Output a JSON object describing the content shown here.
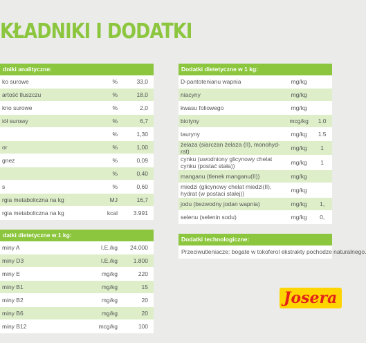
{
  "header": {
    "title": "KŁADNIKI I DODATKI"
  },
  "left_table": {
    "sections": [
      {
        "title": "dniki analityczne:",
        "rows": [
          [
            "ko surowe",
            "%",
            "33,0"
          ],
          [
            "artość tłuszczu",
            "%",
            "18,0"
          ],
          [
            "kno surowe",
            "%",
            "2,0"
          ],
          [
            "iół surowy",
            "%",
            "6,7"
          ],
          [
            "%",
            "1,30"
          ],
          [
            "or",
            "%",
            "1,00"
          ],
          [
            "gnez",
            "%",
            "0,09"
          ],
          [
            "%",
            "0,40"
          ],
          [
            "s",
            "%",
            "0,60"
          ],
          [
            "rgia metaboliczna na kg",
            "MJ",
            "16,7"
          ],
          [
            "rgia metaboliczna na kg",
            "kcal",
            "3.991"
          ]
        ]
      },
      {
        "title": "datki dietetyczne w 1 kg:",
        "rows": [
          [
            "miny A",
            "I.E./kg",
            "24.000"
          ],
          [
            "miny D3",
            "I.E./kg",
            "1.800"
          ],
          [
            "miny E",
            "mg/kg",
            "220"
          ],
          [
            "miny B1",
            "mg/kg",
            "15"
          ],
          [
            "miny B2",
            "mg/kg",
            "20"
          ],
          [
            "miny B6",
            "mg/kg",
            "20"
          ],
          [
            "miny B12",
            "mcg/kg",
            "100"
          ]
        ]
      }
    ]
  },
  "right_table": {
    "sections": [
      {
        "title": "Dodatki dietetyczne w 1 kg:",
        "rows": [
          [
            "D-pantotenianu wapnia",
            "mg/kg"
          ],
          [
            "niacyny",
            "mg/kg"
          ],
          [
            "kwasu foliowego",
            "mg/kg"
          ],
          [
            "biotyny",
            "mcg/kg",
            "1.0"
          ],
          [
            "tauryny",
            "mg/kg",
            "1.5"
          ],
          [
            "żelaza (siarczan żelaza (II), monohyd-rat)",
            "mg/kg",
            "1"
          ],
          [
            "cynku (uwodniony glicynowy chelat cynku (postać stała))",
            "mg/kg",
            "1"
          ],
          [
            "manganu (tlenek manganu(II))",
            "mg/kg"
          ],
          [
            "miedzi (glicynowy chelat miedzi(II), hydrat (w postaci stałej))",
            "mg/kg"
          ],
          [
            "jodu (bezwodny jodan wapnia)",
            "mg/kg",
            "1,"
          ],
          [
            "selenu (selenin sodu)",
            "mg/kg",
            "0,"
          ]
        ]
      },
      {
        "title": "Dodatki technologiczne:",
        "text": "Przeciwutleniacze: bogate w tokoferol ekstrakty pochodze naturalnego."
      }
    ]
  },
  "logo": {
    "text": "Josera"
  }
}
